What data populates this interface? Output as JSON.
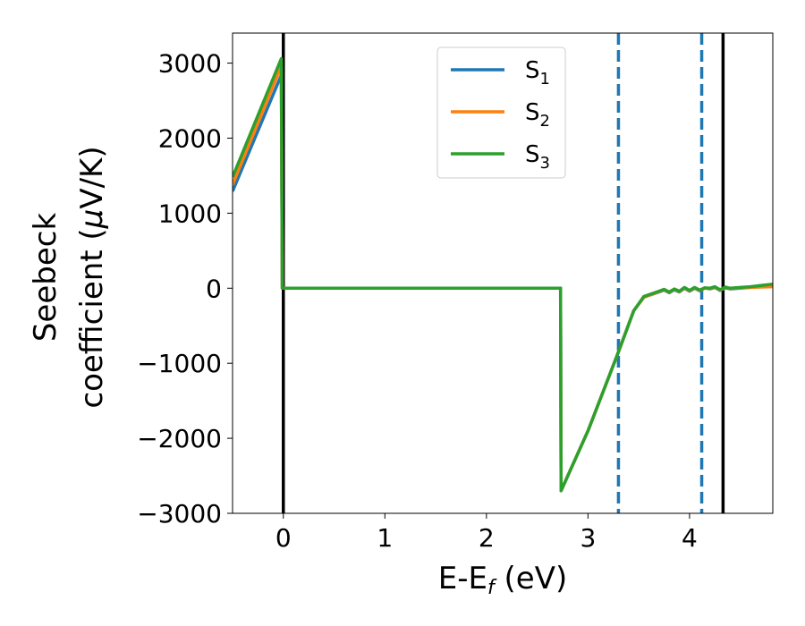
{
  "chart_data": {
    "type": "line",
    "xlabel": {
      "main": "E-E",
      "sub": "f",
      "suffix": " (eV)"
    },
    "ylabel": {
      "line1": "Seebeck",
      "line2_prefix": "coefficient  (",
      "mu": "μ",
      "line2_suffix": "V/K)"
    },
    "xlim": [
      -0.5,
      4.82
    ],
    "ylim": [
      -3000,
      3400
    ],
    "x_ticks": [
      0,
      1,
      2,
      3,
      4
    ],
    "x_tick_labels": [
      "0",
      "1",
      "2",
      "3",
      "4"
    ],
    "y_ticks": [
      -3000,
      -2000,
      -1000,
      0,
      1000,
      2000,
      3000
    ],
    "y_tick_labels": [
      "−3000",
      "−2000",
      "−1000",
      "0",
      "1000",
      "2000",
      "3000"
    ],
    "grid": false,
    "legend_position": "top-center",
    "series": [
      {
        "name": "S",
        "subscript": "1",
        "color": "#1f77b4",
        "points": [
          [
            -0.5,
            1290
          ],
          [
            -0.02,
            2840
          ],
          [
            -0.01,
            0
          ],
          [
            2.73,
            0
          ],
          [
            2.735,
            -2700
          ],
          [
            3.0,
            -1900
          ],
          [
            3.3,
            -850
          ],
          [
            3.45,
            -300
          ],
          [
            3.55,
            -120
          ],
          [
            3.7,
            -50
          ],
          [
            3.75,
            -25
          ],
          [
            3.8,
            -60
          ],
          [
            3.85,
            -20
          ],
          [
            3.9,
            -50
          ],
          [
            3.95,
            0
          ],
          [
            4.0,
            -40
          ],
          [
            4.05,
            0
          ],
          [
            4.1,
            -35
          ],
          [
            4.15,
            5
          ],
          [
            4.2,
            -10
          ],
          [
            4.25,
            10
          ],
          [
            4.3,
            -30
          ],
          [
            4.35,
            5
          ],
          [
            4.4,
            -10
          ],
          [
            4.5,
            0
          ],
          [
            4.6,
            10
          ],
          [
            4.7,
            20
          ],
          [
            4.82,
            30
          ]
        ]
      },
      {
        "name": "S",
        "subscript": "2",
        "color": "#ff7f0e",
        "points": [
          [
            -0.5,
            1380
          ],
          [
            -0.02,
            2960
          ],
          [
            -0.01,
            0
          ],
          [
            2.73,
            0
          ],
          [
            2.735,
            -2700
          ],
          [
            3.0,
            -1900
          ],
          [
            3.3,
            -850
          ],
          [
            3.45,
            -300
          ],
          [
            3.55,
            -120
          ],
          [
            3.7,
            -45
          ],
          [
            3.75,
            -20
          ],
          [
            3.8,
            -55
          ],
          [
            3.85,
            -15
          ],
          [
            3.9,
            -45
          ],
          [
            3.95,
            5
          ],
          [
            4.0,
            -35
          ],
          [
            4.05,
            5
          ],
          [
            4.1,
            -30
          ],
          [
            4.15,
            0
          ],
          [
            4.2,
            -5
          ],
          [
            4.25,
            15
          ],
          [
            4.3,
            -25
          ],
          [
            4.35,
            10
          ],
          [
            4.4,
            -5
          ],
          [
            4.5,
            5
          ],
          [
            4.6,
            10
          ],
          [
            4.7,
            15
          ],
          [
            4.82,
            20
          ]
        ]
      },
      {
        "name": "S",
        "subscript": "3",
        "color": "#2ca02c",
        "points": [
          [
            -0.5,
            1480
          ],
          [
            -0.02,
            3060
          ],
          [
            -0.01,
            0
          ],
          [
            2.73,
            0
          ],
          [
            2.735,
            -2700
          ],
          [
            3.0,
            -1900
          ],
          [
            3.3,
            -850
          ],
          [
            3.45,
            -300
          ],
          [
            3.55,
            -110
          ],
          [
            3.7,
            -40
          ],
          [
            3.75,
            -15
          ],
          [
            3.8,
            -50
          ],
          [
            3.85,
            -10
          ],
          [
            3.9,
            -40
          ],
          [
            3.95,
            10
          ],
          [
            4.0,
            -30
          ],
          [
            4.05,
            10
          ],
          [
            4.1,
            -25
          ],
          [
            4.15,
            5
          ],
          [
            4.2,
            0
          ],
          [
            4.25,
            20
          ],
          [
            4.3,
            -20
          ],
          [
            4.35,
            15
          ],
          [
            4.4,
            0
          ],
          [
            4.5,
            10
          ],
          [
            4.6,
            20
          ],
          [
            4.7,
            35
          ],
          [
            4.82,
            55
          ]
        ]
      }
    ],
    "vlines": [
      {
        "x": 0.0,
        "color": "#000000",
        "style": "solid"
      },
      {
        "x": 4.33,
        "color": "#000000",
        "style": "solid"
      },
      {
        "x": 3.3,
        "color": "#1f77b4",
        "style": "dashed"
      },
      {
        "x": 4.12,
        "color": "#1f77b4",
        "style": "dashed"
      }
    ]
  }
}
